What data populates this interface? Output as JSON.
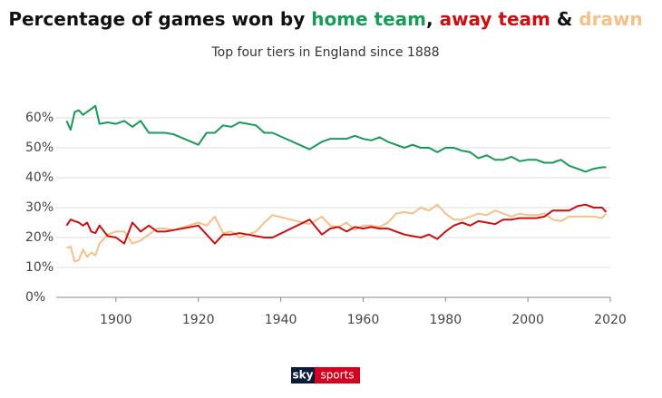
{
  "chart_data": {
    "type": "line",
    "title_parts": [
      {
        "text": "Percentage of games won by ",
        "color": "#111111"
      },
      {
        "text": "home team",
        "color": "#1a9a58"
      },
      {
        "text": ", ",
        "color": "#111111"
      },
      {
        "text": "away team",
        "color": "#cc1010"
      },
      {
        "text": " & ",
        "color": "#111111"
      },
      {
        "text": "drawn",
        "color": "#f5c08a"
      }
    ],
    "subtitle": "Top four tiers in England since 1888",
    "logo": {
      "sky": "sky",
      "sports": "sports"
    },
    "x": [
      1888,
      1889,
      1890,
      1891,
      1892,
      1893,
      1894,
      1895,
      1896,
      1898,
      1900,
      1902,
      1904,
      1906,
      1908,
      1910,
      1912,
      1914,
      1920,
      1922,
      1924,
      1926,
      1928,
      1930,
      1932,
      1934,
      1936,
      1938,
      1947,
      1950,
      1952,
      1954,
      1956,
      1958,
      1960,
      1962,
      1964,
      1966,
      1968,
      1970,
      1972,
      1974,
      1976,
      1978,
      1980,
      1982,
      1984,
      1986,
      1988,
      1990,
      1992,
      1994,
      1996,
      1998,
      2000,
      2002,
      2004,
      2006,
      2008,
      2010,
      2012,
      2014,
      2016,
      2018,
      2019
    ],
    "series": [
      {
        "name": "home team",
        "color": "#1a9a58",
        "values": [
          59,
          56,
          62,
          62.5,
          61,
          62,
          63,
          64,
          58,
          58.5,
          58,
          59,
          57,
          59,
          55,
          55,
          55,
          54.5,
          51,
          55,
          55,
          57.5,
          57,
          58.5,
          58,
          57.5,
          55,
          55,
          49.5,
          52,
          53,
          53,
          53,
          54,
          53,
          52.5,
          53.5,
          52,
          51,
          50,
          51,
          50,
          50,
          48.5,
          50,
          50,
          49,
          48.5,
          46.5,
          47.5,
          46,
          46,
          47,
          45.5,
          46,
          46,
          45,
          45,
          46,
          44,
          43,
          42,
          43,
          43.5,
          43.5
        ]
      },
      {
        "name": "drawn",
        "color": "#f5c08a",
        "values": [
          16.5,
          17,
          12,
          12.5,
          16,
          13.5,
          15,
          14,
          18,
          21,
          22,
          22,
          18,
          19,
          21,
          23,
          23,
          22.5,
          25,
          24,
          27,
          21.5,
          22,
          20,
          21,
          22,
          25,
          27.5,
          24.5,
          27,
          24,
          23.5,
          25,
          22.5,
          24,
          24,
          23.5,
          25,
          28,
          28.5,
          28,
          30,
          29,
          31,
          28,
          26,
          26,
          27,
          28,
          27.5,
          29,
          28,
          27,
          28,
          27.5,
          27.5,
          28,
          26,
          25.5,
          27,
          27,
          27,
          27,
          26.5,
          28
        ]
      },
      {
        "name": "away team",
        "color": "#cc1010",
        "values": [
          24,
          26,
          25.5,
          25,
          24,
          25,
          22,
          21.5,
          24,
          20.5,
          20,
          18,
          25,
          22,
          24,
          22,
          22,
          22.5,
          24,
          21,
          18,
          21,
          21,
          21.5,
          21,
          20.5,
          20,
          20,
          26,
          21,
          23,
          23.5,
          22,
          23.5,
          23,
          23.5,
          23,
          23,
          22,
          21,
          20.5,
          20,
          21,
          19.5,
          22,
          24,
          25,
          24,
          25.5,
          25,
          24.5,
          26,
          26,
          26.5,
          26.5,
          26.5,
          27,
          29,
          29,
          29,
          30.5,
          31,
          30,
          30,
          28.5
        ]
      }
    ],
    "xlim": [
      1885.5,
      2020
    ],
    "xticks": [
      1900,
      1920,
      1940,
      1960,
      1980,
      2000,
      2020
    ],
    "ylim": [
      0,
      60
    ],
    "yticks": [
      {
        "value": 0,
        "label": "0%"
      },
      {
        "value": 10,
        "label": "10%"
      },
      {
        "value": 20,
        "label": "20%"
      },
      {
        "value": 30,
        "label": "30%"
      },
      {
        "value": 40,
        "label": "40%"
      },
      {
        "value": 50,
        "label": "50%"
      },
      {
        "value": 60,
        "label": "60%"
      }
    ],
    "grid": true
  }
}
